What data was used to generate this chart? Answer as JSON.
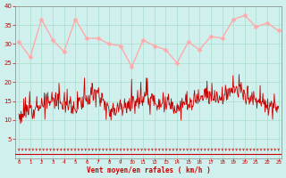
{
  "bg_color": "#d0f0ee",
  "grid_color": "#aaddcc",
  "line_avg_color": "#ffaaaa",
  "line_gust_color": "#cc0000",
  "marker_color": "#ffaaaa",
  "tick_color": "#cc0000",
  "xlabel_color": "#cc0000",
  "xlabel": "Vent moyen/en rafales ( km/h )",
  "ylim": [
    0,
    40
  ],
  "yticks": [
    5,
    10,
    15,
    20,
    25,
    30,
    35,
    40
  ],
  "hours": [
    0,
    1,
    2,
    3,
    4,
    5,
    6,
    7,
    8,
    9,
    10,
    11,
    12,
    13,
    14,
    15,
    16,
    17,
    18,
    19,
    20,
    21,
    22,
    23
  ],
  "avg_vals": [
    30.5,
    26.5,
    36.5,
    31.0,
    28.0,
    36.5,
    31.5,
    31.5,
    30.0,
    29.5,
    24.0,
    31.0,
    29.5,
    28.5,
    25.0,
    30.5,
    28.5,
    32.0,
    31.5,
    36.5,
    37.5,
    34.5,
    35.5,
    33.5
  ],
  "gust_base": [
    11,
    13,
    14,
    15,
    15,
    13,
    16,
    17,
    12,
    14,
    14,
    16,
    15,
    14,
    13,
    14,
    15,
    16,
    16,
    18,
    17,
    15,
    14,
    13
  ],
  "arrow_color": "#cc0000",
  "spine_color": "#888888"
}
